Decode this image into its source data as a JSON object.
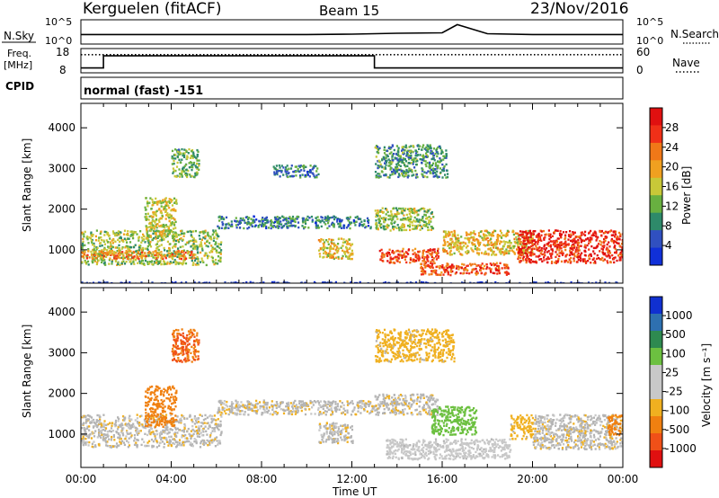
{
  "header": {
    "station": "Kerguelen (fitACF)",
    "beam": "Beam 15",
    "date": "23/Nov/2016"
  },
  "colors": {
    "power_scale": [
      "#1030d8",
      "#3050c0",
      "#2e8a6a",
      "#68b040",
      "#c8c838",
      "#f0a020",
      "#f07818",
      "#f03018",
      "#e01010"
    ],
    "velocity_scale": [
      "#e01010",
      "#f05018",
      "#f08010",
      "#f0b020",
      "#c8c8c8",
      "#c8c8c8",
      "#6cc040",
      "#2e8a50",
      "#2e70b0",
      "#1030d0"
    ],
    "ground_scatter": "#b4b4b4"
  },
  "chart_data": [
    {
      "type": "line",
      "panel": "noise",
      "left_label": "N.Sky",
      "right_label": "N.Search",
      "left_ticks": [
        "10^5",
        "10^0"
      ],
      "right_ticks": [
        "10^5",
        "10^0"
      ],
      "x": [
        "00:00",
        "02:00",
        "04:00",
        "06:00",
        "08:00",
        "10:00",
        "12:00",
        "14:00",
        "16:00",
        "16:40",
        "18:00",
        "20:00",
        "22:00",
        "24:00"
      ],
      "series": [
        {
          "values": [
            2.2,
            2.2,
            2.2,
            2.2,
            2.2,
            2.2,
            2.3,
            2.5,
            2.6,
            4.5,
            2.4,
            2.2,
            2.2,
            2.2
          ]
        }
      ]
    },
    {
      "type": "line",
      "panel": "frequency",
      "left_label_line1": "Freq.",
      "left_label_line2": "[MHz]",
      "right_label": "Nave",
      "left_ticks": [
        "18",
        "8"
      ],
      "right_ticks": [
        "60",
        "0"
      ],
      "ylim_left": [
        8,
        18
      ],
      "ylim_right": [
        0,
        60
      ],
      "x": [
        "00:00",
        "01:00",
        "13:00",
        "24:00"
      ],
      "series": [
        {
          "values": [
            10,
            15,
            10,
            10
          ]
        },
        {
          "values": [
            45,
            45,
            45,
            45
          ]
        }
      ]
    },
    {
      "type": "table",
      "panel": "cpid",
      "label": "CPID",
      "value": "normal (fast) -151"
    },
    {
      "type": "heatmap",
      "panel": "power",
      "ylabel": "Slant Range [km]",
      "yticks": [
        "4000",
        "3000",
        "2000",
        "1000"
      ],
      "ylim": [
        180,
        4600
      ],
      "xlim": [
        0,
        24
      ],
      "colorbar": {
        "label": "Power [dB]",
        "ticks": [
          "28",
          "24",
          "20",
          "16",
          "12",
          "8",
          "4"
        ],
        "range": [
          0,
          32
        ]
      },
      "bands": [
        {
          "t": [
            0.0,
            6.2
          ],
          "r": [
            650,
            1500
          ],
          "v": 14
        },
        {
          "t": [
            0.0,
            5.0
          ],
          "r": [
            800,
            1000
          ],
          "v": 22
        },
        {
          "t": [
            2.8,
            4.2
          ],
          "r": [
            1300,
            2300
          ],
          "v": 16
        },
        {
          "t": [
            4.0,
            5.2
          ],
          "r": [
            2800,
            3500
          ],
          "v": 12
        },
        {
          "t": [
            6.0,
            12.8
          ],
          "r": [
            1550,
            1850
          ],
          "v": 8
        },
        {
          "t": [
            10.5,
            12.0
          ],
          "r": [
            800,
            1300
          ],
          "v": 18
        },
        {
          "t": [
            13.0,
            15.6
          ],
          "r": [
            1500,
            2050
          ],
          "v": 14
        },
        {
          "t": [
            13.2,
            15.8
          ],
          "r": [
            700,
            1050
          ],
          "v": 26
        },
        {
          "t": [
            15.0,
            19.0
          ],
          "r": [
            400,
            700
          ],
          "v": 26
        },
        {
          "t": [
            16.0,
            20.0
          ],
          "r": [
            900,
            1500
          ],
          "v": 18
        },
        {
          "t": [
            19.3,
            24.0
          ],
          "r": [
            700,
            1500
          ],
          "v": 28
        },
        {
          "t": [
            13.0,
            16.2
          ],
          "r": [
            2800,
            3600
          ],
          "v": 10
        },
        {
          "t": [
            8.5,
            10.5
          ],
          "r": [
            2800,
            3100
          ],
          "v": 8
        },
        {
          "t": [
            0.0,
            24.0
          ],
          "r": [
            180,
            230
          ],
          "v": 2
        }
      ]
    },
    {
      "type": "heatmap",
      "panel": "velocity",
      "ylabel": "Slant Range [km]",
      "yticks": [
        "4000",
        "3000",
        "2000",
        "1000"
      ],
      "ylim": [
        180,
        4600
      ],
      "xlim": [
        0,
        24
      ],
      "colorbar": {
        "label": "Velocity [m s⁻¹]",
        "ticks": [
          "1000",
          "500",
          "100",
          "25",
          "-25",
          "-100",
          "-500",
          "-1000"
        ]
      },
      "bands": [
        {
          "t": [
            0.0,
            6.2
          ],
          "r": [
            700,
            1500
          ],
          "v": 0
        },
        {
          "t": [
            2.8,
            4.2
          ],
          "r": [
            1200,
            2200
          ],
          "v": -300
        },
        {
          "t": [
            4.0,
            5.2
          ],
          "r": [
            2800,
            3600
          ],
          "v": -500
        },
        {
          "t": [
            6.0,
            13.0
          ],
          "r": [
            1500,
            1850
          ],
          "v": 0
        },
        {
          "t": [
            10.5,
            12.0
          ],
          "r": [
            800,
            1300
          ],
          "v": 0
        },
        {
          "t": [
            13.0,
            15.8
          ],
          "r": [
            1500,
            2000
          ],
          "v": 0
        },
        {
          "t": [
            15.5,
            17.5
          ],
          "r": [
            1000,
            1700
          ],
          "v": 300
        },
        {
          "t": [
            13.5,
            19.0
          ],
          "r": [
            400,
            900
          ],
          "v": 60
        },
        {
          "t": [
            19.0,
            20.0
          ],
          "r": [
            900,
            1500
          ],
          "v": -60
        },
        {
          "t": [
            20.0,
            24.0
          ],
          "r": [
            650,
            1500
          ],
          "v": 0
        },
        {
          "t": [
            23.3,
            24.0
          ],
          "r": [
            1000,
            1500
          ],
          "v": -300
        },
        {
          "t": [
            13.0,
            16.5
          ],
          "r": [
            2800,
            3600
          ],
          "v": -60
        }
      ]
    },
    {
      "type": "axis",
      "panel": "time-axis",
      "xlabel": "Time UT",
      "xticks": [
        "00:00",
        "04:00",
        "08:00",
        "12:00",
        "16:00",
        "20:00",
        "00:00"
      ]
    }
  ]
}
